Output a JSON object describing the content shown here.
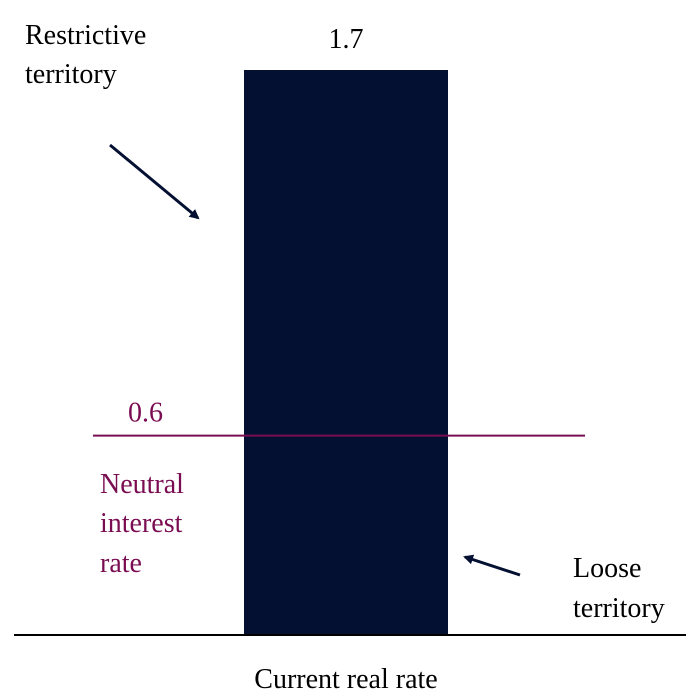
{
  "colors": {
    "bar": "#041032",
    "neutral": "#7a0d52",
    "text": "#000000",
    "arrow": "#041032"
  },
  "chart_data": {
    "type": "bar",
    "categories": [
      "Current real rate"
    ],
    "values": [
      1.7
    ],
    "value_labels": [
      "1.7"
    ],
    "ylim": [
      0,
      1.7
    ],
    "grid": false,
    "reference_line": {
      "value": 0.6,
      "value_label": "0.6",
      "label_lines": [
        "Neutral",
        "interest",
        "rate"
      ]
    },
    "annotations": {
      "restrictive": [
        "Restrictive",
        "territory"
      ],
      "loose": [
        "Loose",
        "territory"
      ]
    }
  }
}
